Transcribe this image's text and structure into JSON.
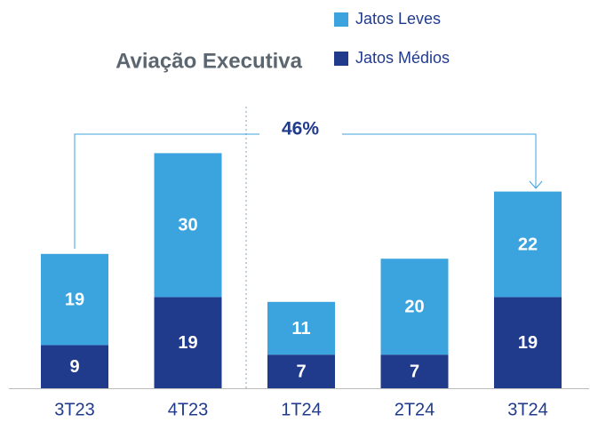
{
  "chart_data": {
    "type": "stacked_bar",
    "title": "Aviação Executiva",
    "categories": [
      "3T23",
      "4T23",
      "1T24",
      "2T24",
      "3T24"
    ],
    "series": [
      {
        "name": "Jatos Médios",
        "color": "#213b8c",
        "values": [
          9,
          19,
          7,
          7,
          19
        ]
      },
      {
        "name": "Jatos Leves",
        "color": "#3ba3dd",
        "values": [
          19,
          30,
          11,
          20,
          22
        ]
      }
    ],
    "annotation": "46%"
  }
}
